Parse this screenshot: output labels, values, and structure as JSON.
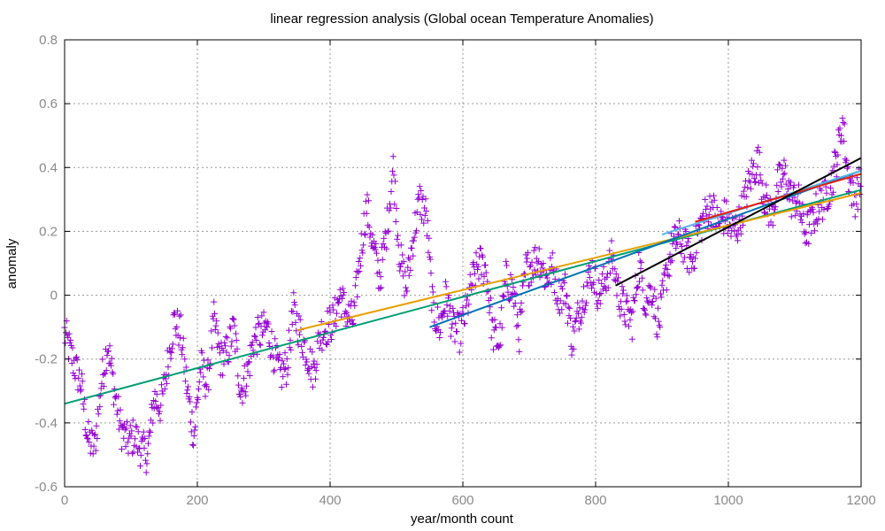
{
  "chart_data": {
    "type": "scatter",
    "title": "linear regression analysis (Global ocean Temperature Anomalies)",
    "xlabel": "year/month count",
    "ylabel": "anomaly",
    "xlim": [
      0,
      1200
    ],
    "ylim": [
      -0.6,
      0.8
    ],
    "xticks": [
      0,
      200,
      400,
      600,
      800,
      1000,
      1200
    ],
    "xtick_labels": [
      "0",
      "200",
      "400",
      "600",
      "800",
      "1000",
      "1200"
    ],
    "yticks": [
      -0.6,
      -0.4,
      -0.2,
      0,
      0.2,
      0.4,
      0.6,
      0.8
    ],
    "ytick_labels": [
      "-0.6",
      "-0.4",
      "-0.2",
      "0",
      "0.2",
      "0.4",
      "0.6",
      "0.8"
    ],
    "grid": true,
    "point_color": "#9400D3",
    "anchors": [
      [
        0,
        -0.12
      ],
      [
        15,
        -0.22
      ],
      [
        25,
        -0.28
      ],
      [
        35,
        -0.45
      ],
      [
        45,
        -0.48
      ],
      [
        55,
        -0.28
      ],
      [
        65,
        -0.15
      ],
      [
        75,
        -0.3
      ],
      [
        85,
        -0.42
      ],
      [
        95,
        -0.46
      ],
      [
        105,
        -0.44
      ],
      [
        115,
        -0.48
      ],
      [
        125,
        -0.5
      ],
      [
        135,
        -0.32
      ],
      [
        145,
        -0.35
      ],
      [
        155,
        -0.22
      ],
      [
        165,
        -0.08
      ],
      [
        175,
        -0.12
      ],
      [
        185,
        -0.3
      ],
      [
        195,
        -0.44
      ],
      [
        205,
        -0.22
      ],
      [
        215,
        -0.28
      ],
      [
        225,
        -0.08
      ],
      [
        235,
        -0.2
      ],
      [
        245,
        -0.18
      ],
      [
        255,
        -0.1
      ],
      [
        265,
        -0.3
      ],
      [
        275,
        -0.25
      ],
      [
        285,
        -0.14
      ],
      [
        295,
        -0.12
      ],
      [
        305,
        -0.1
      ],
      [
        315,
        -0.18
      ],
      [
        325,
        -0.25
      ],
      [
        335,
        -0.22
      ],
      [
        345,
        -0.05
      ],
      [
        355,
        -0.12
      ],
      [
        365,
        -0.18
      ],
      [
        375,
        -0.24
      ],
      [
        385,
        -0.12
      ],
      [
        395,
        -0.1
      ],
      [
        405,
        -0.08
      ],
      [
        415,
        0.0
      ],
      [
        425,
        -0.06
      ],
      [
        435,
        -0.08
      ],
      [
        445,
        0.12
      ],
      [
        455,
        0.28
      ],
      [
        465,
        0.15
      ],
      [
        475,
        0.05
      ],
      [
        485,
        0.2
      ],
      [
        495,
        0.4
      ],
      [
        505,
        0.12
      ],
      [
        515,
        0.02
      ],
      [
        525,
        0.18
      ],
      [
        535,
        0.3
      ],
      [
        545,
        0.25
      ],
      [
        555,
        -0.05
      ],
      [
        565,
        -0.1
      ],
      [
        575,
        0.0
      ],
      [
        585,
        -0.1
      ],
      [
        595,
        -0.12
      ],
      [
        605,
        -0.05
      ],
      [
        615,
        0.05
      ],
      [
        625,
        0.1
      ],
      [
        635,
        0.08
      ],
      [
        645,
        -0.12
      ],
      [
        655,
        -0.15
      ],
      [
        665,
        0.05
      ],
      [
        675,
        0.02
      ],
      [
        685,
        -0.12
      ],
      [
        695,
        0.08
      ],
      [
        705,
        0.1
      ],
      [
        715,
        0.12
      ],
      [
        725,
        0.05
      ],
      [
        735,
        0.08
      ],
      [
        745,
        0.0
      ],
      [
        755,
        0.02
      ],
      [
        765,
        -0.15
      ],
      [
        775,
        -0.05
      ],
      [
        785,
        0.02
      ],
      [
        795,
        0.08
      ],
      [
        805,
        0.0
      ],
      [
        815,
        0.05
      ],
      [
        825,
        0.12
      ],
      [
        835,
        0.0
      ],
      [
        845,
        -0.05
      ],
      [
        855,
        -0.08
      ],
      [
        865,
        0.1
      ],
      [
        875,
        -0.02
      ],
      [
        885,
        0.02
      ],
      [
        895,
        -0.1
      ],
      [
        905,
        0.05
      ],
      [
        915,
        0.15
      ],
      [
        925,
        0.18
      ],
      [
        935,
        0.15
      ],
      [
        945,
        0.1
      ],
      [
        955,
        0.2
      ],
      [
        965,
        0.25
      ],
      [
        975,
        0.28
      ],
      [
        985,
        0.22
      ],
      [
        995,
        0.25
      ],
      [
        1005,
        0.2
      ],
      [
        1015,
        0.22
      ],
      [
        1025,
        0.3
      ],
      [
        1035,
        0.38
      ],
      [
        1045,
        0.42
      ],
      [
        1055,
        0.3
      ],
      [
        1065,
        0.25
      ],
      [
        1075,
        0.35
      ],
      [
        1085,
        0.38
      ],
      [
        1095,
        0.3
      ],
      [
        1105,
        0.3
      ],
      [
        1115,
        0.2
      ],
      [
        1125,
        0.22
      ],
      [
        1135,
        0.28
      ],
      [
        1145,
        0.3
      ],
      [
        1155,
        0.35
      ],
      [
        1165,
        0.45
      ],
      [
        1172,
        0.55
      ],
      [
        1180,
        0.38
      ],
      [
        1190,
        0.3
      ],
      [
        1199,
        0.35
      ]
    ],
    "regression_lines": [
      {
        "color": "#009E73",
        "x": [
          0,
          1200
        ],
        "y": [
          -0.34,
          0.33
        ]
      },
      {
        "color": "#E69F00",
        "x": [
          350,
          1200
        ],
        "y": [
          -0.11,
          0.32
        ]
      },
      {
        "color": "#0072B2",
        "x": [
          550,
          1200
        ],
        "y": [
          -0.1,
          0.39
        ]
      },
      {
        "color": "#56B4E9",
        "x": [
          900,
          1200
        ],
        "y": [
          0.19,
          0.39
        ]
      },
      {
        "color": "#E51E10",
        "x": [
          950,
          1200
        ],
        "y": [
          0.23,
          0.38
        ]
      },
      {
        "color": "#000000",
        "x": [
          830,
          1200
        ],
        "y": [
          0.03,
          0.43
        ]
      }
    ]
  }
}
